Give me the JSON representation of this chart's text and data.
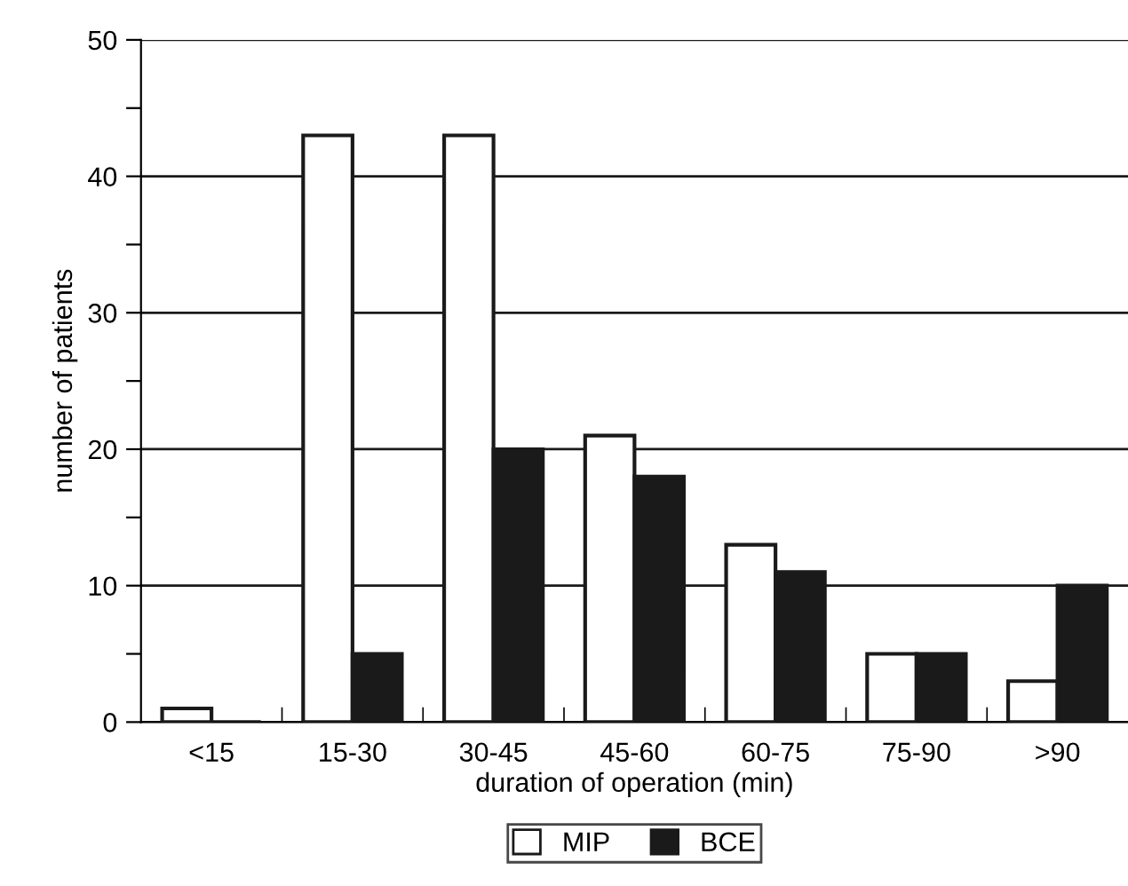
{
  "chart_data": {
    "type": "bar",
    "xlabel": "duration of operation (min)",
    "ylabel": "number of patients",
    "categories": [
      "<15",
      "15-30",
      "30-45",
      "45-60",
      "60-75",
      "75-90",
      ">90"
    ],
    "series": [
      {
        "name": "MIP",
        "color": "#ffffff",
        "values": [
          1,
          43,
          43,
          21,
          13,
          5,
          3
        ]
      },
      {
        "name": "BCE",
        "color": "#1a1a1a",
        "values": [
          0,
          5,
          20,
          18,
          11,
          5,
          10
        ]
      }
    ],
    "ylim": [
      0,
      50
    ],
    "yticks": [
      0,
      {
        "value": 5,
        "label": null
      },
      10,
      {
        "value": 15,
        "label": null
      },
      20,
      {
        "value": 25,
        "label": null
      },
      30,
      {
        "value": 35,
        "label": null
      },
      40,
      {
        "value": 45,
        "label": null
      },
      50
    ],
    "grid": "y",
    "legend": "bottom"
  }
}
